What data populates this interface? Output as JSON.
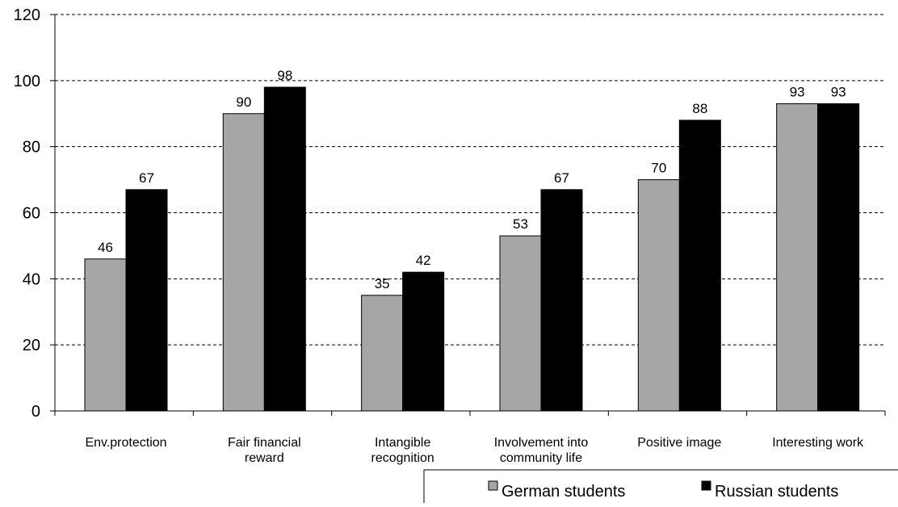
{
  "chart_data": {
    "type": "bar",
    "categories": [
      [
        "Env.protection"
      ],
      [
        "Fair financial",
        "reward"
      ],
      [
        "Intangible",
        "recognition"
      ],
      [
        "Involvement into",
        "community life"
      ],
      [
        "Positive image"
      ],
      [
        "Interesting work"
      ]
    ],
    "series": [
      {
        "name": "German students",
        "values": [
          46,
          90,
          35,
          53,
          70,
          93
        ],
        "color": "#a6a6a6"
      },
      {
        "name": "Russian students",
        "values": [
          67,
          98,
          42,
          67,
          88,
          93
        ],
        "color": "#000000"
      }
    ],
    "y_ticks": [
      "0",
      "20",
      "40",
      "60",
      "80",
      "100",
      "120"
    ],
    "ylim": [
      0,
      120
    ],
    "grid": "dashed-horizontal",
    "legend_position": "bottom-right",
    "title": "",
    "xlabel": "",
    "ylabel": ""
  }
}
